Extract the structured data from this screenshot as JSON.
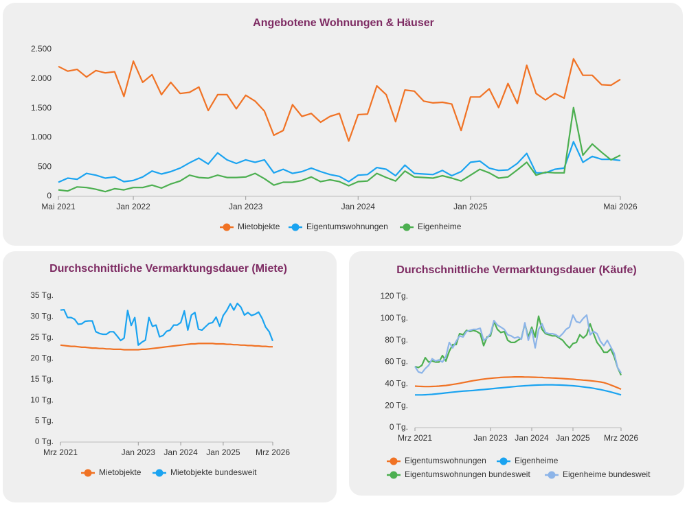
{
  "chart_data": [
    {
      "type": "line",
      "title": "Angebotene Wohnungen & Häuser",
      "categories": [
        "Mai 2021",
        null,
        null,
        null,
        null,
        null,
        null,
        null,
        "Jan 2022",
        null,
        null,
        null,
        null,
        null,
        null,
        null,
        null,
        null,
        null,
        null,
        "Jan 2023",
        null,
        null,
        null,
        null,
        null,
        null,
        null,
        null,
        null,
        null,
        null,
        "Jan 2024",
        null,
        null,
        null,
        null,
        null,
        null,
        null,
        null,
        null,
        null,
        null,
        "Jan 2025",
        null,
        null,
        null,
        null,
        null,
        null,
        null,
        null,
        null,
        null,
        null,
        null,
        null,
        null,
        null,
        "Mai 2026"
      ],
      "ylim": [
        0,
        2500
      ],
      "yticks": [
        0,
        500,
        {
          "value": 1000,
          "label": "1.000"
        },
        {
          "value": 1500,
          "label": "1.500"
        },
        {
          "value": 2000,
          "label": "2.000"
        },
        {
          "value": 2500,
          "label": "2.500"
        }
      ],
      "grid": false,
      "series": [
        {
          "name": "Mietobjekte",
          "color": "#f07224",
          "values": [
            2210,
            2130,
            2160,
            2030,
            2140,
            2100,
            2120,
            1700,
            2300,
            1940,
            2070,
            1730,
            1940,
            1750,
            1770,
            1860,
            1460,
            1730,
            1730,
            1490,
            1720,
            1620,
            1450,
            1040,
            1120,
            1560,
            1360,
            1410,
            1260,
            1360,
            1410,
            940,
            1390,
            1400,
            1880,
            1730,
            1270,
            1810,
            1790,
            1620,
            1590,
            1600,
            1570,
            1120,
            1690,
            1690,
            1830,
            1510,
            1920,
            1580,
            2230,
            1750,
            1640,
            1750,
            1670,
            2340,
            2060,
            2060,
            1900,
            1890,
            1990
          ]
        },
        {
          "name": "Eigentumswohnungen",
          "color": "#1aa3f0",
          "values": [
            240,
            310,
            290,
            390,
            360,
            310,
            330,
            250,
            270,
            330,
            430,
            380,
            420,
            480,
            570,
            650,
            550,
            740,
            620,
            560,
            620,
            580,
            620,
            400,
            460,
            390,
            420,
            480,
            420,
            370,
            340,
            250,
            360,
            370,
            490,
            460,
            350,
            530,
            390,
            380,
            370,
            440,
            350,
            420,
            580,
            600,
            480,
            440,
            450,
            560,
            730,
            400,
            400,
            460,
            480,
            930,
            580,
            680,
            630,
            630,
            610
          ]
        },
        {
          "name": "Eigenheime",
          "color": "#4caf50",
          "values": [
            110,
            90,
            160,
            150,
            120,
            80,
            130,
            110,
            150,
            150,
            190,
            140,
            210,
            260,
            360,
            320,
            310,
            360,
            320,
            320,
            330,
            390,
            300,
            190,
            240,
            240,
            270,
            330,
            250,
            280,
            250,
            180,
            250,
            260,
            390,
            320,
            260,
            430,
            330,
            320,
            310,
            350,
            310,
            260,
            360,
            460,
            400,
            310,
            330,
            450,
            580,
            360,
            410,
            400,
            400,
            1510,
            700,
            890,
            750,
            620,
            700
          ]
        }
      ]
    },
    {
      "type": "line",
      "title": "Durchschnittliche Vermarktungsdauer (Miete)",
      "categories": [
        "Mrz 2021",
        null,
        null,
        null,
        null,
        null,
        null,
        null,
        null,
        null,
        null,
        null,
        null,
        null,
        null,
        null,
        null,
        null,
        null,
        null,
        null,
        null,
        "Jan 2023",
        null,
        null,
        null,
        null,
        null,
        null,
        null,
        null,
        null,
        null,
        null,
        "Jan 2024",
        null,
        null,
        null,
        null,
        null,
        null,
        null,
        null,
        null,
        null,
        null,
        "Jan 2025",
        null,
        null,
        null,
        null,
        null,
        null,
        null,
        null,
        null,
        null,
        null,
        null,
        null,
        "Mrz 2026"
      ],
      "ylim": [
        0,
        35
      ],
      "yticks": [
        {
          "value": 0,
          "label": "0 Tg."
        },
        {
          "value": 5,
          "label": "5 Tg."
        },
        {
          "value": 10,
          "label": "10 Tg."
        },
        {
          "value": 15,
          "label": "15 Tg."
        },
        {
          "value": 20,
          "label": "20 Tg."
        },
        {
          "value": 25,
          "label": "25 Tg."
        },
        {
          "value": 30,
          "label": "30 Tg."
        },
        {
          "value": 35,
          "label": "35 Tg."
        }
      ],
      "grid": false,
      "series": [
        {
          "name": "Mietobjekte",
          "color": "#f07224",
          "values": [
            23.2,
            23.1,
            23.0,
            22.9,
            22.9,
            22.8,
            22.7,
            22.7,
            22.6,
            22.5,
            22.5,
            22.4,
            22.4,
            22.3,
            22.3,
            22.2,
            22.2,
            22.2,
            22.1,
            22.1,
            22.1,
            22.1,
            22.1,
            22.2,
            22.2,
            22.3,
            22.4,
            22.5,
            22.6,
            22.7,
            22.8,
            22.9,
            23.0,
            23.1,
            23.2,
            23.3,
            23.4,
            23.5,
            23.5,
            23.6,
            23.6,
            23.6,
            23.6,
            23.6,
            23.5,
            23.5,
            23.5,
            23.4,
            23.4,
            23.3,
            23.3,
            23.2,
            23.2,
            23.1,
            23.1,
            23.0,
            23.0,
            22.9,
            22.9,
            22.8,
            22.8
          ]
        },
        {
          "name": "Mietobjekte bundesweit",
          "color": "#1aa3f0",
          "values": [
            31.6,
            31.7,
            29.8,
            29.8,
            29.4,
            28.2,
            28.3,
            28.9,
            29.0,
            29.0,
            26.4,
            26.0,
            25.8,
            25.8,
            26.4,
            26.4,
            25.4,
            24.3,
            24.9,
            31.5,
            27.9,
            29.8,
            23.2,
            23.9,
            24.4,
            29.8,
            27.7,
            28.0,
            25.2,
            25.5,
            26.5,
            26.8,
            28.0,
            28.0,
            28.6,
            31.4,
            26.8,
            30.4,
            31.0,
            27.0,
            26.8,
            27.6,
            28.4,
            28.6,
            29.9,
            27.7,
            30.3,
            31.5,
            33.1,
            31.6,
            33.2,
            32.3,
            30.4,
            31.0,
            30.3,
            30.6,
            31.1,
            29.6,
            27.5,
            26.4,
            24.2
          ]
        }
      ]
    },
    {
      "type": "line",
      "title": "Durchschnittliche Vermarktungsdauer (Käufe)",
      "categories": [
        "Mrz 2021",
        null,
        null,
        null,
        null,
        null,
        null,
        null,
        null,
        null,
        null,
        null,
        null,
        null,
        null,
        null,
        null,
        null,
        null,
        null,
        null,
        null,
        "Jan 2023",
        null,
        null,
        null,
        null,
        null,
        null,
        null,
        null,
        null,
        null,
        null,
        "Jan 2024",
        null,
        null,
        null,
        null,
        null,
        null,
        null,
        null,
        null,
        null,
        null,
        "Jan 2025",
        null,
        null,
        null,
        null,
        null,
        null,
        null,
        null,
        null,
        null,
        null,
        null,
        null,
        "Mrz 2026"
      ],
      "ylim": [
        0,
        120
      ],
      "yticks": [
        {
          "value": 0,
          "label": "0 Tg."
        },
        {
          "value": 20,
          "label": "20 Tg."
        },
        {
          "value": 40,
          "label": "40 Tg."
        },
        {
          "value": 60,
          "label": "60 Tg."
        },
        {
          "value": 80,
          "label": "80 Tg."
        },
        {
          "value": 100,
          "label": "100 Tg."
        },
        {
          "value": 120,
          "label": "120 Tg."
        }
      ],
      "grid": false,
      "series": [
        {
          "name": "Eigentumswohnungen",
          "color": "#f07224",
          "values": [
            38.0,
            37.8,
            37.7,
            37.6,
            37.6,
            37.7,
            37.8,
            38.0,
            38.3,
            38.6,
            39.0,
            39.5,
            40.0,
            40.6,
            41.2,
            41.8,
            42.4,
            43.0,
            43.5,
            44.0,
            44.4,
            44.8,
            45.1,
            45.4,
            45.7,
            45.9,
            46.1,
            46.2,
            46.3,
            46.4,
            46.4,
            46.4,
            46.3,
            46.3,
            46.2,
            46.1,
            46.0,
            45.9,
            45.7,
            45.6,
            45.4,
            45.3,
            45.1,
            44.9,
            44.7,
            44.5,
            44.3,
            44.0,
            43.8,
            43.5,
            43.3,
            43.0,
            42.6,
            42.2,
            41.8,
            41.2,
            40.2,
            39.0,
            37.8,
            36.5,
            35.2
          ]
        },
        {
          "name": "Eigenheime",
          "color": "#1aa3f0",
          "values": [
            30.0,
            30.0,
            30.0,
            30.1,
            30.3,
            30.5,
            30.8,
            31.1,
            31.4,
            31.8,
            32.1,
            32.5,
            32.8,
            33.1,
            33.4,
            33.6,
            33.8,
            34.0,
            34.3,
            34.6,
            34.9,
            35.2,
            35.5,
            35.8,
            36.1,
            36.4,
            36.7,
            37.0,
            37.3,
            37.6,
            37.9,
            38.1,
            38.3,
            38.5,
            38.7,
            38.9,
            39.0,
            39.1,
            39.2,
            39.2,
            39.2,
            39.1,
            39.0,
            38.9,
            38.7,
            38.5,
            38.3,
            38.0,
            37.7,
            37.3,
            36.9,
            36.5,
            36.0,
            35.4,
            34.8,
            34.1,
            33.4,
            32.6,
            31.8,
            30.9,
            30.0
          ]
        },
        {
          "name": "Eigentumswohnungen bundesweit",
          "color": "#4caf50",
          "values": [
            56,
            55,
            57,
            64,
            60,
            61,
            60,
            60,
            66,
            61,
            70,
            76,
            76,
            86,
            85,
            89,
            88,
            89,
            88,
            86,
            75,
            83,
            84,
            97,
            90,
            87,
            88,
            80,
            78,
            78,
            80,
            82,
            95,
            83,
            92,
            83,
            102,
            90,
            86,
            85,
            84,
            84,
            82,
            80,
            76,
            73,
            77,
            78,
            85,
            82,
            85,
            95,
            86,
            78,
            74,
            69,
            69,
            72,
            65,
            55,
            48
          ]
        },
        {
          "name": "Eigenheime bundesweit",
          "color": "#8cb4e8",
          "values": [
            56,
            51,
            50,
            54,
            57,
            63,
            61,
            62,
            60,
            65,
            78,
            73,
            79,
            84,
            83,
            88,
            89,
            90,
            90,
            91,
            80,
            82,
            86,
            98,
            94,
            92,
            90,
            85,
            84,
            82,
            83,
            81,
            96,
            80,
            90,
            73,
            90,
            95,
            87,
            86,
            86,
            85,
            83,
            86,
            90,
            92,
            103,
            97,
            96,
            100,
            103,
            85,
            88,
            86,
            79,
            75,
            80,
            74,
            68,
            55,
            50
          ]
        }
      ]
    }
  ]
}
